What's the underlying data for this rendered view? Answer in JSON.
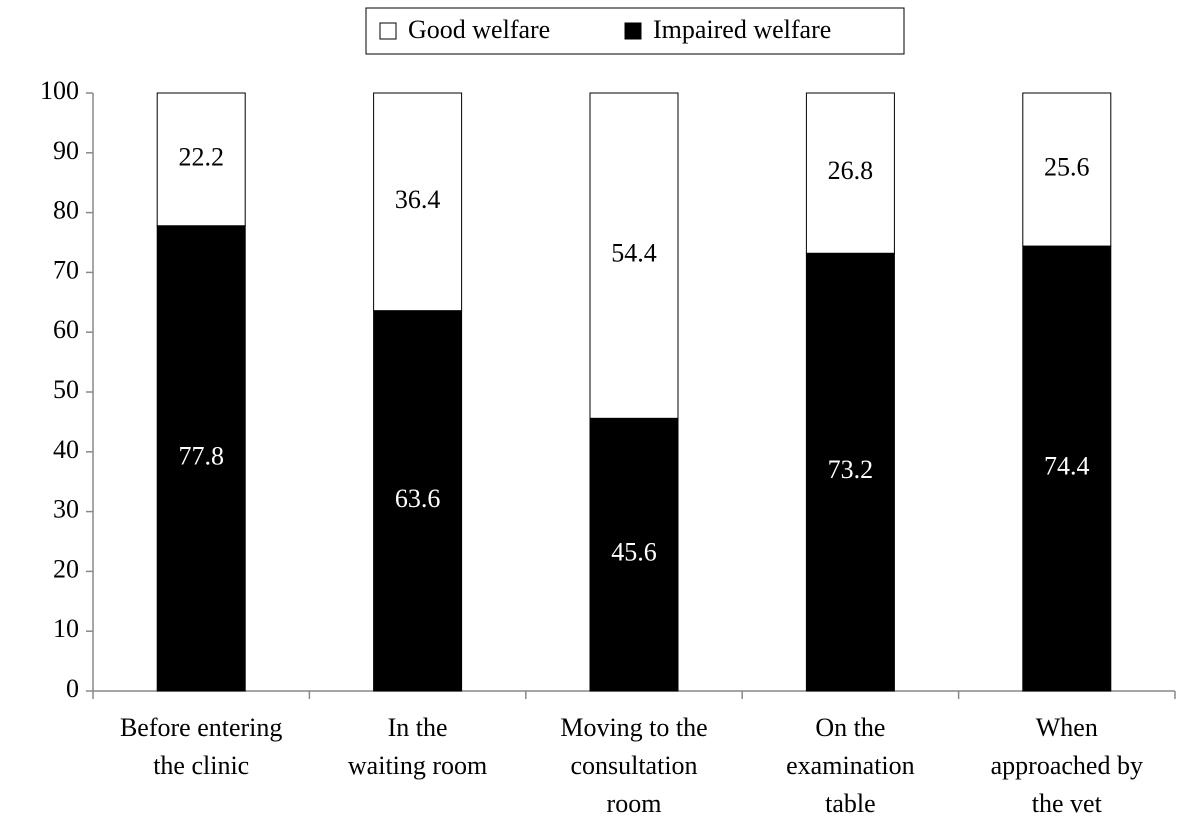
{
  "chart_data": {
    "type": "stacked_bar",
    "categories": [
      "Before entering\nthe clinic",
      "In the\nwaiting room",
      "Moving to the\nconsultation\nroom",
      "On the\nexamination\ntable",
      "When\napproached by\nthe vet"
    ],
    "series": [
      {
        "name": "Good welfare",
        "color": "#ffffff",
        "values": [
          22.2,
          36.4,
          54.4,
          26.8,
          25.6
        ]
      },
      {
        "name": "Impaired welfare",
        "color": "#000000",
        "values": [
          77.8,
          63.6,
          45.6,
          73.2,
          74.4
        ]
      }
    ],
    "ylim": [
      0,
      100
    ],
    "yticks": [
      0,
      10,
      20,
      30,
      40,
      50,
      60,
      70,
      80,
      90,
      100
    ],
    "legend": "top"
  }
}
